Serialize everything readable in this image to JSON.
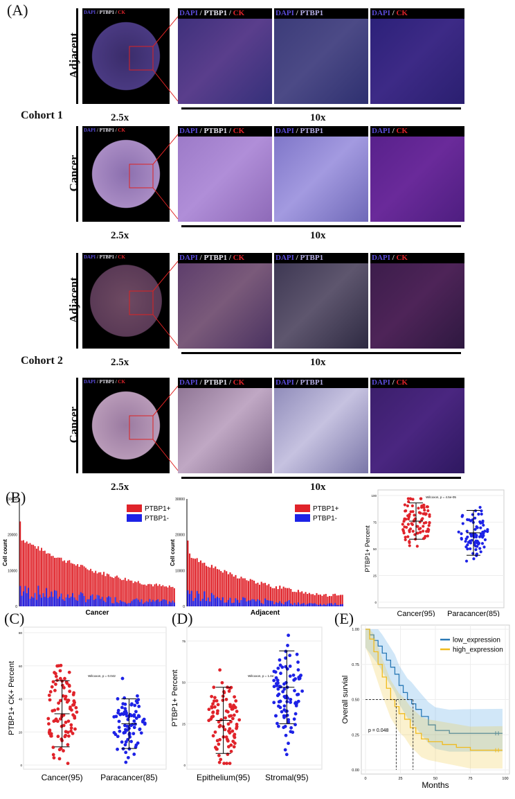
{
  "panels": {
    "a": "(A)",
    "b": "(B)",
    "c": "(C)",
    "d": "(D)",
    "e": "(E)"
  },
  "rows": [
    {
      "label": "Adjacent",
      "mag_low": "2.5x",
      "mag_high": "10x"
    },
    {
      "label": "Cancer",
      "mag_low": "2.5x",
      "mag_high": "10x"
    },
    {
      "label": "Adjacent",
      "mag_low": "2.5x",
      "mag_high": "10x"
    },
    {
      "label": "Cancer",
      "mag_low": "2.5x",
      "mag_high": "10x"
    }
  ],
  "cohorts": [
    "Cohort 1",
    "Cohort 2"
  ],
  "stain": {
    "dapi": "DAPI",
    "ptbp1": "PTBP1",
    "ck": "CK",
    "sep": " / "
  },
  "colors": {
    "red": "#e0232a",
    "blue": "#1d22e6",
    "low": "#2878b5",
    "high": "#f0bb1e"
  },
  "chart_data": [
    {
      "type": "bar",
      "id": "cancer-bars",
      "xlabel": "Cancer",
      "ylabel": "Cell count",
      "ylim": [
        0,
        30000
      ],
      "yticks": [
        "0",
        "10000",
        "20000",
        "30000"
      ],
      "series": [
        {
          "name": "PTBP1+"
        },
        {
          "name": "PTBP1-"
        }
      ]
    },
    {
      "type": "bar",
      "id": "adjacent-bars",
      "xlabel": "Adjacent",
      "ylabel": "Cell count",
      "ylim": [
        0,
        30000
      ],
      "yticks": [
        "0",
        "10000",
        "20000",
        "30000"
      ],
      "series": [
        {
          "name": "PTBP1+"
        },
        {
          "name": "PTBP1-"
        }
      ]
    },
    {
      "type": "scatter",
      "id": "b-dots",
      "ylabel": "PTBP1+ Percent",
      "categories": [
        "Cancer(95)",
        "Paracancer(85)"
      ],
      "ylim": [
        0,
        100
      ],
      "yticks": [
        "0",
        "25",
        "50",
        "75",
        "100"
      ],
      "annotation": "Wilcoxon, p = 4.5e-05",
      "summary": [
        {
          "mean": 76,
          "sd": 17
        },
        {
          "mean": 65,
          "sd": 21
        }
      ]
    },
    {
      "type": "scatter",
      "id": "c-dots",
      "ylabel": "PTBP1+ CK+ Percent",
      "categories": [
        "Cancer(95)",
        "Paracancer(85)"
      ],
      "ylim": [
        0,
        80
      ],
      "yticks": [
        "0",
        "20",
        "40",
        "60",
        "80"
      ],
      "annotation": "Wilcoxon, p = 0.042",
      "summary": [
        {
          "mean": 31,
          "sd": 20
        },
        {
          "mean": 25,
          "sd": 15
        }
      ]
    },
    {
      "type": "scatter",
      "id": "d-dots",
      "ylabel": "PTBP1+ Percent",
      "categories": [
        "Epithelium(95)",
        "Stromal(95)"
      ],
      "ylim": [
        0,
        80
      ],
      "yticks": [
        "0",
        "25",
        "50",
        "75"
      ],
      "annotation": "Wilcoxon, p = 1.8e-",
      "summary": [
        {
          "mean": 27,
          "sd": 20
        },
        {
          "mean": 47,
          "sd": 22
        }
      ]
    },
    {
      "type": "line",
      "id": "km",
      "xlabel": "Months",
      "ylabel": "Overall survial",
      "xlim": [
        0,
        100
      ],
      "ylim": [
        0,
        1
      ],
      "xticks": [
        "0",
        "25",
        "50",
        "75",
        "100"
      ],
      "yticks": [
        "0.00",
        "0.25",
        "0.50",
        "0.75",
        "1.00"
      ],
      "annotation": "p = 0.048",
      "series": [
        {
          "name": "low_expression",
          "x": [
            0,
            3,
            6,
            9,
            12,
            15,
            18,
            21,
            24,
            27,
            30,
            33,
            36,
            40,
            45,
            50,
            60,
            70,
            98
          ],
          "y": [
            1,
            0.96,
            0.92,
            0.88,
            0.83,
            0.78,
            0.73,
            0.68,
            0.6,
            0.55,
            0.5,
            0.47,
            0.43,
            0.38,
            0.32,
            0.28,
            0.26,
            0.26,
            0.26
          ]
        },
        {
          "name": "high_expression",
          "x": [
            0,
            3,
            6,
            9,
            12,
            15,
            18,
            21,
            24,
            28,
            32,
            36,
            40,
            45,
            55,
            65,
            75,
            98
          ],
          "y": [
            1,
            0.93,
            0.84,
            0.75,
            0.66,
            0.58,
            0.5,
            0.45,
            0.4,
            0.36,
            0.3,
            0.26,
            0.22,
            0.2,
            0.18,
            0.16,
            0.14,
            0.14
          ]
        }
      ],
      "median_lines": [
        22,
        34
      ]
    }
  ]
}
